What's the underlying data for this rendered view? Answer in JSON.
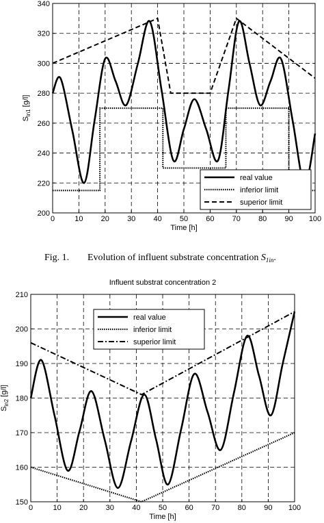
{
  "chart_data": [
    {
      "type": "line",
      "x_label": "Time [h]",
      "y_label": {
        "main": "S",
        "sub": "in1",
        "unit": " [g/l]"
      },
      "xlim": [
        0,
        100
      ],
      "xticks": [
        0,
        10,
        20,
        30,
        40,
        50,
        60,
        70,
        80,
        90,
        100
      ],
      "ylim": [
        200,
        340
      ],
      "yticks": [
        200,
        220,
        240,
        260,
        280,
        300,
        320,
        340
      ],
      "grid": true,
      "legend": "lower right",
      "series": [
        {
          "name": "real value",
          "color": "#000000",
          "style": "solid",
          "smooth": true,
          "x": [
            0,
            3,
            7.5,
            12,
            16,
            20,
            24,
            28,
            32.5,
            37,
            41.5,
            46,
            50,
            54,
            58.5,
            63,
            67,
            71,
            75,
            79,
            83,
            87,
            91.5,
            96,
            100
          ],
          "values": [
            280,
            290,
            255,
            220,
            262,
            303,
            288,
            272,
            300,
            328,
            282,
            235,
            256,
            276,
            256,
            235,
            282,
            328,
            300,
            272,
            288,
            303,
            261,
            219,
            253
          ]
        },
        {
          "name": "inferior limit",
          "color": "#000000",
          "style": "dotted",
          "smooth": false,
          "x": [
            0,
            18,
            18,
            42,
            42,
            66,
            66,
            90,
            90,
            100
          ],
          "values": [
            215,
            215,
            270,
            270,
            230,
            230,
            270,
            270,
            215,
            215
          ]
        },
        {
          "name": "superior limit",
          "color": "#000000",
          "style": "dashed",
          "smooth": false,
          "x": [
            0,
            40,
            45,
            60,
            70,
            100
          ],
          "values": [
            300,
            330,
            280,
            280,
            330,
            290
          ]
        }
      ]
    },
    {
      "type": "line",
      "title": "Influent substrat concentration 2",
      "x_label": "Time [h]",
      "y_label": {
        "main": "S",
        "sub": "in2",
        "unit": " [g/l]"
      },
      "xlim": [
        0,
        100
      ],
      "xticks": [
        0,
        10,
        20,
        30,
        40,
        50,
        60,
        70,
        80,
        90,
        100
      ],
      "ylim": [
        150,
        210
      ],
      "yticks": [
        150,
        160,
        170,
        180,
        190,
        200,
        210
      ],
      "grid": true,
      "legend": "upper center",
      "series": [
        {
          "name": "real value",
          "color": "#000000",
          "style": "solid",
          "smooth": true,
          "x": [
            0,
            4,
            9,
            14,
            18.5,
            23,
            28,
            33,
            38,
            43,
            47.5,
            52,
            57,
            62,
            67,
            72,
            77,
            82,
            86.5,
            91,
            95.5,
            100
          ],
          "values": [
            180,
            191,
            175,
            159,
            170.5,
            182,
            168,
            154,
            167.5,
            181,
            168,
            155,
            171,
            187,
            176,
            165,
            181.5,
            198,
            186.5,
            175,
            190,
            205
          ]
        },
        {
          "name": "inferior limit",
          "color": "#000000",
          "style": "dotted",
          "smooth": false,
          "x": [
            0,
            42,
            100
          ],
          "values": [
            160,
            150,
            170
          ]
        },
        {
          "name": "superior limit",
          "color": "#000000",
          "style": "dashdot",
          "smooth": false,
          "x": [
            0,
            42,
            100
          ],
          "values": [
            196,
            181,
            205
          ]
        }
      ]
    }
  ],
  "caption": {
    "label": "Fig. 1.",
    "text": "Evolution of influent substrate concentration ",
    "symbol": "S",
    "sub": "1in",
    "end": "."
  }
}
